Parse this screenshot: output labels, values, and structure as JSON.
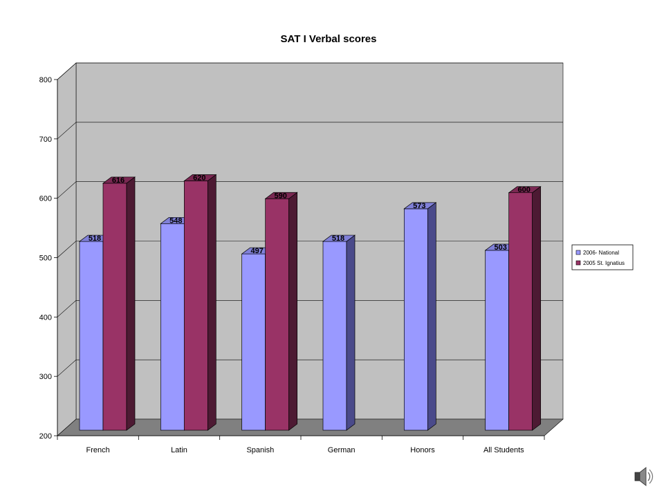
{
  "chart_data": {
    "type": "bar",
    "title": "SAT I Verbal scores",
    "categories": [
      "French",
      "Latin",
      "Spanish",
      "German",
      "Honors",
      "All Students"
    ],
    "series": [
      {
        "name": "2006- National",
        "values": [
          518,
          548,
          497,
          518,
          573,
          503
        ],
        "color": "#9999ff",
        "side_color": "#4a4a8a",
        "top_color": "#8080d8"
      },
      {
        "name": "2005 St. Ignatius",
        "values": [
          616,
          620,
          590,
          null,
          null,
          600
        ],
        "color": "#993366",
        "side_color": "#4d1a33",
        "top_color": "#7a2852"
      }
    ],
    "data_labels": [
      [
        "518",
        "548",
        "497",
        "518",
        "573",
        "503"
      ],
      [
        "616",
        "620",
        "590",
        null,
        null,
        "600"
      ]
    ],
    "y_ticks": [
      "200",
      "300",
      "400",
      "500",
      "600",
      "700",
      "800"
    ],
    "ylim": [
      200,
      800
    ],
    "grid": true,
    "legend_position": "right",
    "background_color": "#c0c0c0",
    "floor_color": "#808080"
  },
  "icons": {
    "speaker": "speaker-icon"
  }
}
